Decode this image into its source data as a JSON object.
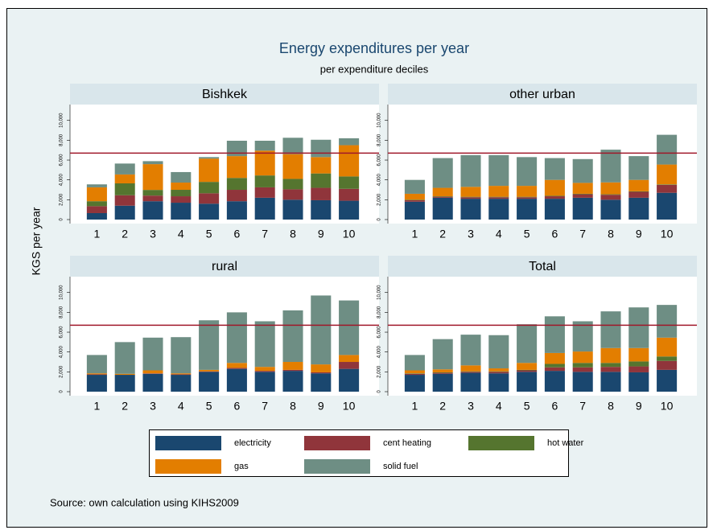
{
  "title": "Energy expenditures per year",
  "subtitle": "per expenditure deciles",
  "y_label": "KGS per year",
  "source": "Source: own calculation using KIHS2009",
  "chart_data": [
    {
      "type": "bar",
      "stacked": true,
      "title": "Bishkek",
      "categories": [
        "1",
        "2",
        "3",
        "4",
        "5",
        "6",
        "7",
        "8",
        "9",
        "10"
      ],
      "series": [
        {
          "name": "electricity",
          "color": "#1a476f",
          "values": [
            650,
            1400,
            1850,
            1700,
            1600,
            1850,
            2200,
            2000,
            1950,
            1900
          ]
        },
        {
          "name": "cent heating",
          "color": "#90353b",
          "values": [
            700,
            1050,
            570,
            650,
            1050,
            1150,
            1050,
            1050,
            1250,
            1200
          ]
        },
        {
          "name": "hot water",
          "color": "#55752f",
          "values": [
            500,
            1200,
            570,
            650,
            1150,
            1200,
            1200,
            1050,
            1450,
            1250
          ]
        },
        {
          "name": "gas",
          "color": "#e37e00",
          "values": [
            1400,
            900,
            2600,
            730,
            2350,
            2200,
            2500,
            2500,
            1650,
            3150
          ]
        },
        {
          "name": "solid fuel",
          "color": "#6e8e84",
          "values": [
            300,
            1100,
            300,
            1060,
            150,
            1550,
            1000,
            1650,
            1750,
            700
          ]
        }
      ],
      "ylim": [
        0,
        11600
      ],
      "yticks": [
        0,
        {
          "value": 2000,
          "label": "2,000"
        },
        {
          "value": 4000,
          "label": "4,000"
        },
        {
          "value": 6000,
          "label": "6,000"
        },
        {
          "value": 8000,
          "label": "8,000"
        },
        {
          "value": 10000,
          "label": "10,000"
        }
      ],
      "hline": 6700,
      "hline_color": "#a0182a"
    },
    {
      "type": "bar",
      "stacked": true,
      "title": "other urban",
      "categories": [
        "1",
        "2",
        "3",
        "4",
        "5",
        "6",
        "7",
        "8",
        "9",
        "10"
      ],
      "series": [
        {
          "name": "electricity",
          "color": "#1a476f",
          "values": [
            1800,
            2200,
            2100,
            2100,
            2100,
            2100,
            2200,
            2000,
            2200,
            2700
          ]
        },
        {
          "name": "cent heating",
          "color": "#90353b",
          "values": [
            150,
            100,
            150,
            150,
            150,
            250,
            350,
            500,
            600,
            800
          ]
        },
        {
          "name": "hot water",
          "color": "#55752f",
          "values": [
            50,
            50,
            50,
            50,
            50,
            50,
            50,
            50,
            50,
            50
          ]
        },
        {
          "name": "gas",
          "color": "#e37e00",
          "values": [
            600,
            850,
            1000,
            1100,
            1100,
            1600,
            1100,
            1200,
            1150,
            2000
          ]
        },
        {
          "name": "solid fuel",
          "color": "#6e8e84",
          "values": [
            1400,
            3000,
            3200,
            3100,
            2900,
            2200,
            2400,
            3300,
            2400,
            3000
          ]
        }
      ],
      "ylim": [
        0,
        11600
      ],
      "yticks": [
        0,
        {
          "value": 2000,
          "label": "2,000"
        },
        {
          "value": 4000,
          "label": "4,000"
        },
        {
          "value": 6000,
          "label": "6,000"
        },
        {
          "value": 8000,
          "label": "8,000"
        },
        {
          "value": 10000,
          "label": "10,000"
        }
      ],
      "hline": 6700,
      "hline_color": "#a0182a"
    },
    {
      "type": "bar",
      "stacked": true,
      "title": "rural",
      "categories": [
        "1",
        "2",
        "3",
        "4",
        "5",
        "6",
        "7",
        "8",
        "9",
        "10"
      ],
      "series": [
        {
          "name": "electricity",
          "color": "#1a476f",
          "values": [
            1700,
            1700,
            1800,
            1700,
            2000,
            2300,
            2000,
            2100,
            1850,
            2300
          ]
        },
        {
          "name": "cent heating",
          "color": "#90353b",
          "values": [
            50,
            0,
            50,
            50,
            50,
            100,
            100,
            100,
            100,
            700
          ]
        },
        {
          "name": "hot water",
          "color": "#55752f",
          "values": [
            0,
            0,
            0,
            0,
            0,
            0,
            0,
            0,
            0,
            0
          ]
        },
        {
          "name": "gas",
          "color": "#e37e00",
          "values": [
            100,
            100,
            300,
            100,
            150,
            500,
            400,
            800,
            800,
            700
          ]
        },
        {
          "name": "solid fuel",
          "color": "#6e8e84",
          "values": [
            1850,
            3200,
            3300,
            3650,
            5000,
            5100,
            4600,
            5200,
            6950,
            5500
          ]
        }
      ],
      "ylim": [
        0,
        11600
      ],
      "yticks": [
        0,
        {
          "value": 2000,
          "label": "2,000"
        },
        {
          "value": 4000,
          "label": "4,000"
        },
        {
          "value": 6000,
          "label": "6,000"
        },
        {
          "value": 8000,
          "label": "8,000"
        },
        {
          "value": 10000,
          "label": "10,000"
        }
      ],
      "hline": 6700,
      "hline_color": "#a0182a"
    },
    {
      "type": "bar",
      "stacked": true,
      "title": "Total",
      "categories": [
        "1",
        "2",
        "3",
        "4",
        "5",
        "6",
        "7",
        "8",
        "9",
        "10"
      ],
      "series": [
        {
          "name": "electricity",
          "color": "#1a476f",
          "values": [
            1700,
            1800,
            1900,
            1850,
            2000,
            2100,
            2000,
            2000,
            1950,
            2200
          ]
        },
        {
          "name": "cent heating",
          "color": "#90353b",
          "values": [
            100,
            100,
            100,
            150,
            150,
            350,
            450,
            500,
            600,
            900
          ]
        },
        {
          "name": "hot water",
          "color": "#55752f",
          "values": [
            50,
            50,
            50,
            50,
            50,
            350,
            450,
            400,
            500,
            450
          ]
        },
        {
          "name": "gas",
          "color": "#e37e00",
          "values": [
            300,
            300,
            600,
            300,
            700,
            1100,
            1150,
            1500,
            1350,
            1900
          ]
        },
        {
          "name": "solid fuel",
          "color": "#6e8e84",
          "values": [
            1550,
            3050,
            3100,
            3350,
            3900,
            3700,
            3050,
            3700,
            4100,
            3300
          ]
        }
      ],
      "ylim": [
        0,
        11600
      ],
      "yticks": [
        0,
        {
          "value": 2000,
          "label": "2,000"
        },
        {
          "value": 4000,
          "label": "4,000"
        },
        {
          "value": 6000,
          "label": "6,000"
        },
        {
          "value": 8000,
          "label": "8,000"
        },
        {
          "value": 10000,
          "label": "10,000"
        }
      ],
      "hline": 6700,
      "hline_color": "#a0182a"
    }
  ]
}
